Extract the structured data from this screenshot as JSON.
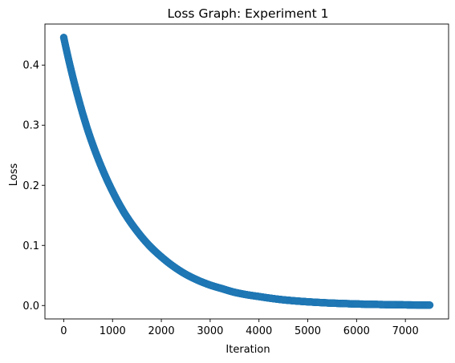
{
  "chart_data": {
    "type": "scatter",
    "title": "Loss Graph: Experiment 1",
    "xlabel": "Iteration",
    "ylabel": "Loss",
    "xlim": [
      -385,
      7885
    ],
    "ylim": [
      -0.0223,
      0.4683
    ],
    "xticks": [
      0,
      1000,
      2000,
      3000,
      4000,
      5000,
      6000,
      7000
    ],
    "xtick_labels": [
      "0",
      "1000",
      "2000",
      "3000",
      "4000",
      "5000",
      "6000",
      "7000"
    ],
    "yticks": [
      0.0,
      0.1,
      0.2,
      0.3,
      0.4
    ],
    "ytick_labels": [
      "0.0",
      "0.1",
      "0.2",
      "0.3",
      "0.4"
    ],
    "grid": false,
    "legend": "none",
    "series": [
      {
        "color": "#1f77b4",
        "marker": "circle",
        "x": [
          0,
          250,
          500,
          750,
          1000,
          1250,
          1500,
          1750,
          2000,
          2250,
          2500,
          2750,
          3000,
          3250,
          3500,
          3750,
          4000,
          4250,
          4500,
          4750,
          5000,
          5250,
          5500,
          5750,
          6000,
          6250,
          6500,
          6750,
          7000,
          7250,
          7500
        ],
        "y": [
          0.446,
          0.36,
          0.29,
          0.235,
          0.19,
          0.153,
          0.124,
          0.1,
          0.081,
          0.065,
          0.052,
          0.042,
          0.034,
          0.028,
          0.022,
          0.018,
          0.015,
          0.012,
          0.0095,
          0.0077,
          0.0062,
          0.005,
          0.004,
          0.0033,
          0.0026,
          0.0021,
          0.0017,
          0.0014,
          0.0011,
          0.0009,
          0.0007
        ]
      }
    ]
  }
}
